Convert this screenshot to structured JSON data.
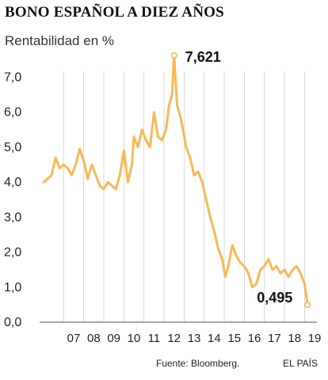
{
  "chart_data": {
    "type": "line",
    "title": "BONO ESPAÑOL A DIEZ AÑOS",
    "ylabel": "Rentabilidad en %",
    "ylim": [
      0,
      7.6
    ],
    "yticks": [
      "0,0",
      "1,0",
      "2,0",
      "3,0",
      "4,0",
      "5,0",
      "6,0",
      "7,0"
    ],
    "xticks": [
      "07",
      "08",
      "09",
      "10",
      "11",
      "12",
      "13",
      "14",
      "15",
      "16",
      "17",
      "18",
      "19"
    ],
    "grid": "vertical",
    "color": "#f7b955",
    "series": [
      {
        "values": [
          [
            2006.0,
            4.0
          ],
          [
            2006.2,
            4.1
          ],
          [
            2006.4,
            4.2
          ],
          [
            2006.6,
            4.7
          ],
          [
            2006.8,
            4.4
          ],
          [
            2007.0,
            4.5
          ],
          [
            2007.2,
            4.4
          ],
          [
            2007.4,
            4.2
          ],
          [
            2007.6,
            4.5
          ],
          [
            2007.8,
            4.95
          ],
          [
            2008.0,
            4.6
          ],
          [
            2008.2,
            4.1
          ],
          [
            2008.4,
            4.5
          ],
          [
            2008.6,
            4.2
          ],
          [
            2008.8,
            3.9
          ],
          [
            2009.0,
            3.8
          ],
          [
            2009.2,
            4.0
          ],
          [
            2009.4,
            3.9
          ],
          [
            2009.6,
            3.8
          ],
          [
            2009.8,
            4.2
          ],
          [
            2010.0,
            4.9
          ],
          [
            2010.2,
            4.0
          ],
          [
            2010.4,
            4.5
          ],
          [
            2010.5,
            5.3
          ],
          [
            2010.7,
            5.0
          ],
          [
            2010.9,
            5.5
          ],
          [
            2011.1,
            5.2
          ],
          [
            2011.3,
            5.0
          ],
          [
            2011.5,
            6.0
          ],
          [
            2011.7,
            5.3
          ],
          [
            2011.9,
            5.2
          ],
          [
            2012.1,
            5.5
          ],
          [
            2012.25,
            6.2
          ],
          [
            2012.4,
            6.5
          ],
          [
            2012.5,
            7.621
          ],
          [
            2012.65,
            6.2
          ],
          [
            2012.8,
            5.9
          ],
          [
            2012.95,
            5.5
          ],
          [
            2013.1,
            5.0
          ],
          [
            2013.3,
            4.7
          ],
          [
            2013.5,
            4.2
          ],
          [
            2013.7,
            4.3
          ],
          [
            2013.9,
            4.0
          ],
          [
            2014.1,
            3.5
          ],
          [
            2014.3,
            3.0
          ],
          [
            2014.5,
            2.6
          ],
          [
            2014.7,
            2.1
          ],
          [
            2014.9,
            1.8
          ],
          [
            2015.05,
            1.3
          ],
          [
            2015.2,
            1.6
          ],
          [
            2015.4,
            2.2
          ],
          [
            2015.6,
            1.9
          ],
          [
            2015.8,
            1.7
          ],
          [
            2016.0,
            1.6
          ],
          [
            2016.2,
            1.4
          ],
          [
            2016.4,
            1.0
          ],
          [
            2016.6,
            1.1
          ],
          [
            2016.8,
            1.5
          ],
          [
            2017.0,
            1.6
          ],
          [
            2017.2,
            1.8
          ],
          [
            2017.4,
            1.5
          ],
          [
            2017.6,
            1.6
          ],
          [
            2017.8,
            1.4
          ],
          [
            2018.0,
            1.5
          ],
          [
            2018.2,
            1.3
          ],
          [
            2018.4,
            1.5
          ],
          [
            2018.6,
            1.6
          ],
          [
            2018.8,
            1.4
          ],
          [
            2019.0,
            1.1
          ],
          [
            2019.15,
            0.495
          ]
        ]
      }
    ],
    "annotations": [
      {
        "label": "7,621",
        "x": 2012.5,
        "y": 7.621
      },
      {
        "label": "0,495",
        "x": 2019.15,
        "y": 0.495
      }
    ]
  },
  "footer": {
    "source": "Fuente: Bloomberg.",
    "brand": "EL PAÍS"
  }
}
